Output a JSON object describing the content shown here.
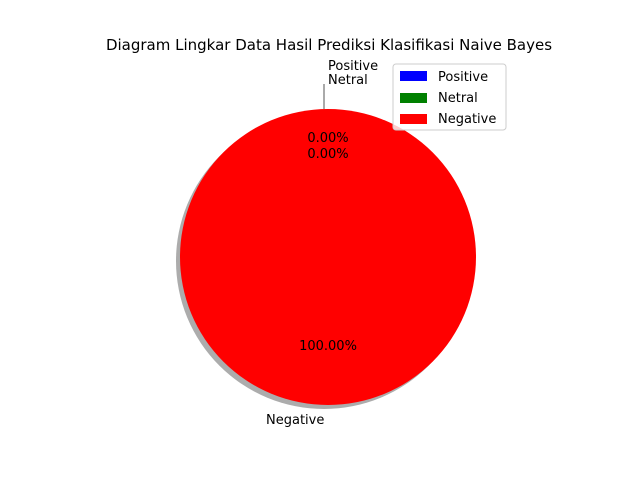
{
  "chart_data": {
    "type": "pie",
    "title": "Diagram Lingkar Data Hasil Prediksi Klasifikasi Naive Bayes",
    "labels": [
      "Positive",
      "Netral",
      "Negative"
    ],
    "values": [
      0.0,
      0.0,
      100.0
    ],
    "percent_labels": [
      "0.00%",
      "0.00%",
      "100.00%"
    ],
    "colors": [
      "#0000ff",
      "#008000",
      "#ff0000"
    ],
    "shadow": true,
    "legend": {
      "placement": "top-right",
      "entries": [
        "Positive",
        "Netral",
        "Negative"
      ]
    }
  }
}
